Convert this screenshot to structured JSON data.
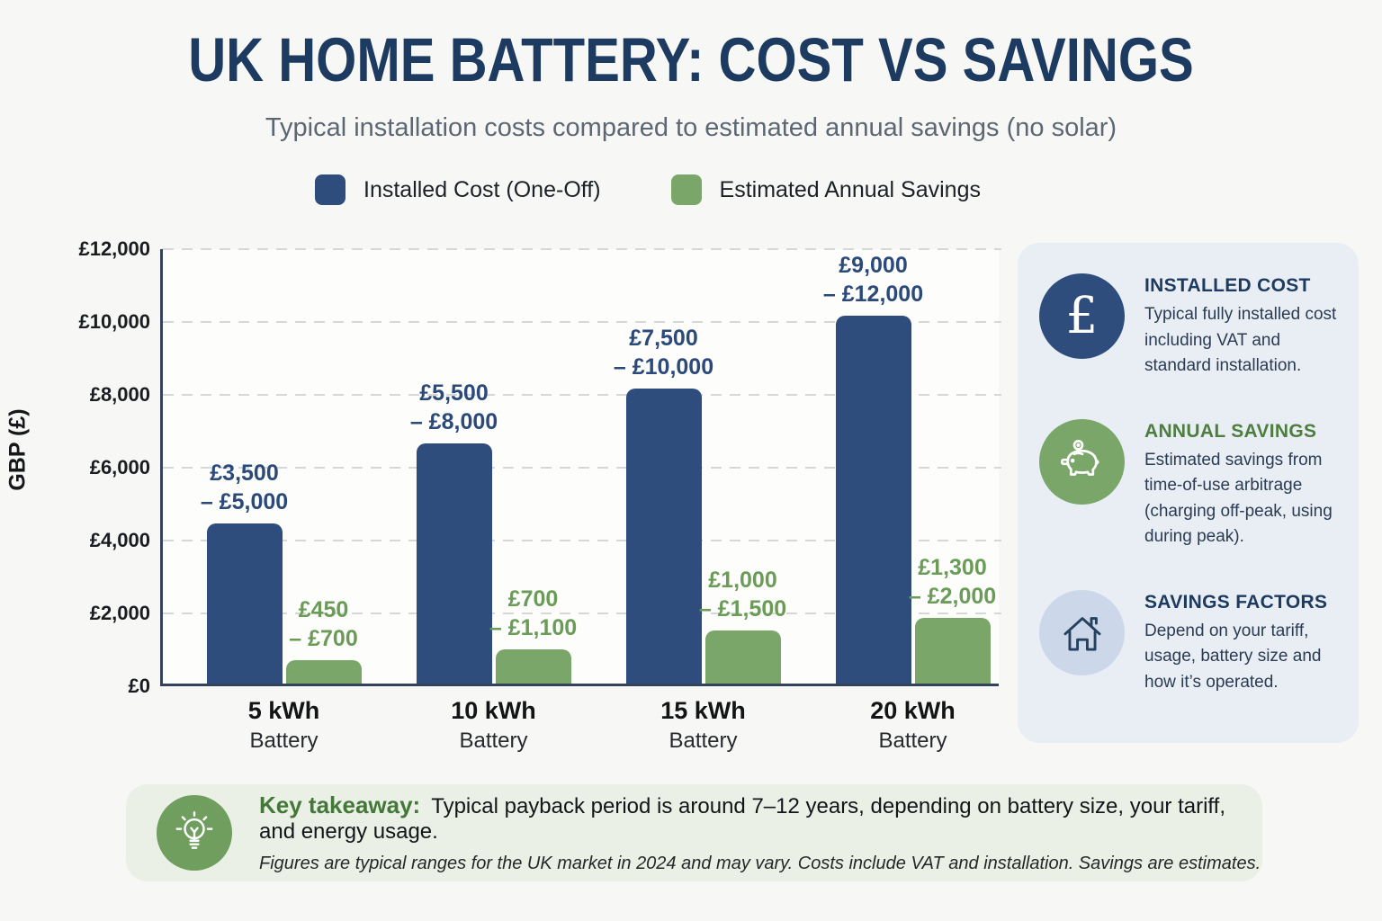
{
  "page": {
    "title": "UK HOME BATTERY: COST VS SAVINGS",
    "subtitle": "Typical installation costs compared to estimated annual savings (no solar)"
  },
  "legend": {
    "items": [
      {
        "label": "Installed Cost (One-Off)",
        "color": "#2e4d7c"
      },
      {
        "label": "Estimated Annual Savings",
        "color": "#7aa769"
      }
    ]
  },
  "chart_data": {
    "type": "bar",
    "title": "UK Home Battery: Cost vs Savings",
    "subtitle": "Typical installation costs compared to estimated annual savings (no solar)",
    "ylabel": "GBP (£)",
    "xlabel": "",
    "ylim": [
      0,
      12000
    ],
    "yticks": [
      0,
      2000,
      4000,
      6000,
      8000,
      10000,
      12000
    ],
    "ytick_labels": [
      "£0",
      "£2,000",
      "£4,000",
      "£6,000",
      "£8,000",
      "£10,000",
      "£12,000"
    ],
    "grid": "horizontal-dashed",
    "legend_position": "top",
    "categories": [
      "5 kWh",
      "10 kWh",
      "15 kWh",
      "20 kWh"
    ],
    "category_sublabel": "Battery",
    "series": [
      {
        "name": "Installed Cost (One-Off)",
        "color": "#2e4d7c",
        "label_color": "#2b4a79",
        "values": [
          4400,
          6600,
          8100,
          10100
        ],
        "range_labels": [
          "£3,500 – £5,000",
          "£5,500 – £8,000",
          "£7,500 – £10,000",
          "£9,000 – £12,000"
        ],
        "label_lines": [
          [
            "£3,500",
            "– £5,000"
          ],
          [
            "£5,500",
            "– £8,000"
          ],
          [
            "£7,500",
            "– £10,000"
          ],
          [
            "£9,000",
            "– £12,000"
          ]
        ]
      },
      {
        "name": "Estimated Annual Savings",
        "color": "#7aa769",
        "label_color": "#6a9c58",
        "values": [
          650,
          950,
          1450,
          1800
        ],
        "range_labels": [
          "£450 – £700",
          "£700 – £1,100",
          "£1,000 – £1,500",
          "£1,300 – £2,000"
        ],
        "label_lines": [
          [
            "£450",
            "– £700"
          ],
          [
            "£700",
            "– £1,100"
          ],
          [
            "£1,000",
            "– £1,500"
          ],
          [
            "£1,300",
            "– £2,000"
          ]
        ]
      }
    ]
  },
  "sidebar": {
    "cards": [
      {
        "icon": "pound-icon",
        "title": "INSTALLED COST",
        "body": "Typical fully installed cost including VAT and standard installation."
      },
      {
        "icon": "piggy-bank-icon",
        "title": "ANNUAL SAVINGS",
        "body": "Estimated savings from time-of-use arbitrage (charging off-peak, using during peak)."
      },
      {
        "icon": "house-icon",
        "title": "SAVINGS FACTORS",
        "body": "Depend on your tariff, usage, battery size and how it’s operated."
      }
    ]
  },
  "footer": {
    "takeaway_label": "Key takeaway:",
    "takeaway_text": "Typical payback period is around 7–12 years, depending on battery size, your tariff, and energy usage.",
    "note": "Figures are typical ranges for the UK market in 2024 and may vary. Costs include VAT and installation. Savings are estimates."
  },
  "colors": {
    "page_bg": "#f7f8f5",
    "plot_bg": "#fdfdfc",
    "axis": "#35425c",
    "gridline": "#d6d7d8",
    "title": "#1d3a60",
    "subtitle": "#5c6773",
    "cost_navy": "#2e4d7c",
    "savings_green": "#7aa769",
    "sidebar_bg": "#e9eef5",
    "sidebar_blue_circle": "#ccd8e9",
    "footer_bg": "#eaf0e6",
    "footer_circle_green": "#6f9e5e",
    "takeaway_green": "#447838"
  }
}
